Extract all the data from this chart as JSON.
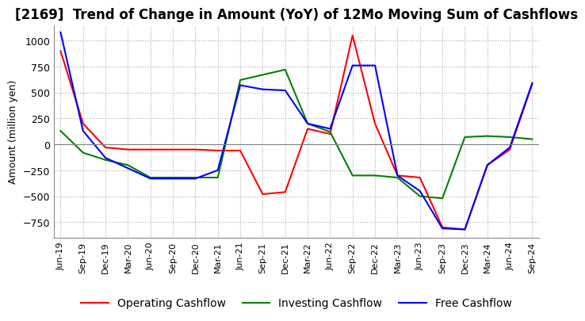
{
  "title": "[2169]  Trend of Change in Amount (YoY) of 12Mo Moving Sum of Cashflows",
  "ylabel": "Amount (million yen)",
  "x_labels": [
    "Jun-19",
    "Sep-19",
    "Dec-19",
    "Mar-20",
    "Jun-20",
    "Sep-20",
    "Dec-20",
    "Mar-21",
    "Jun-21",
    "Sep-21",
    "Dec-21",
    "Mar-22",
    "Jun-22",
    "Sep-22",
    "Dec-22",
    "Mar-23",
    "Jun-23",
    "Sep-23",
    "Dec-23",
    "Mar-24",
    "Jun-24",
    "Sep-24"
  ],
  "operating": [
    900,
    200,
    -30,
    -50,
    -50,
    -50,
    -50,
    -60,
    -60,
    -480,
    -460,
    150,
    100,
    1050,
    200,
    -300,
    -320,
    -800,
    -820,
    -200,
    -50,
    580
  ],
  "investing": [
    130,
    -80,
    -150,
    -200,
    -320,
    -320,
    -320,
    -320,
    620,
    670,
    720,
    200,
    120,
    -300,
    -300,
    -320,
    -500,
    -520,
    70,
    80,
    70,
    50
  ],
  "free": [
    1080,
    130,
    -130,
    -230,
    -330,
    -330,
    -330,
    -250,
    570,
    530,
    520,
    200,
    150,
    760,
    760,
    -300,
    -450,
    -810,
    -820,
    -200,
    -30,
    590
  ],
  "ylim": [
    -900,
    1150
  ],
  "yticks": [
    -750,
    -500,
    -250,
    0,
    250,
    500,
    750,
    1000
  ],
  "operating_color": "#ff0000",
  "investing_color": "#008000",
  "free_color": "#0000ff",
  "background_color": "#ffffff",
  "grid_color": "#aaaaaa",
  "title_fontsize": 12,
  "axis_fontsize": 9,
  "tick_fontsize": 8,
  "legend_fontsize": 10
}
